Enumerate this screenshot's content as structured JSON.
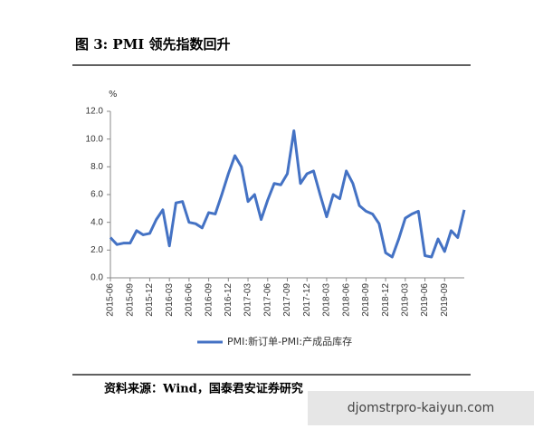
{
  "header": {
    "title": "图 3:  PMI 领先指数回升"
  },
  "chart_data": {
    "type": "line",
    "y_unit": "%",
    "categories": [
      "2015-06",
      null,
      null,
      "2015-09",
      null,
      null,
      "2015-12",
      null,
      null,
      "2016-03",
      null,
      null,
      "2016-06",
      null,
      null,
      "2016-09",
      null,
      null,
      "2016-12",
      null,
      null,
      "2017-03",
      null,
      null,
      "2017-06",
      null,
      null,
      "2017-09",
      null,
      null,
      "2017-12",
      null,
      null,
      "2018-03",
      null,
      null,
      "2018-06",
      null,
      null,
      "2018-09",
      null,
      null,
      "2018-12",
      null,
      null,
      "2019-03",
      null,
      null,
      "2019-06",
      null,
      null,
      "2019-09",
      null,
      null,
      null
    ],
    "series": [
      {
        "name": "PMI:新订单-PMI:产成品库存",
        "color": "#4472c4",
        "values": [
          2.9,
          2.4,
          2.5,
          2.5,
          3.4,
          3.1,
          3.2,
          4.2,
          4.9,
          2.3,
          5.4,
          5.5,
          4.0,
          3.9,
          3.6,
          4.7,
          4.6,
          6.0,
          7.5,
          8.8,
          8.0,
          5.5,
          6.0,
          4.2,
          5.6,
          6.8,
          6.7,
          7.5,
          10.6,
          6.8,
          7.5,
          7.7,
          6.0,
          4.4,
          6.0,
          5.7,
          7.7,
          6.8,
          5.2,
          4.8,
          4.6,
          3.9,
          1.8,
          1.5,
          2.8,
          4.3,
          4.6,
          4.8,
          1.6,
          1.5,
          2.8,
          1.9,
          3.4,
          2.9,
          4.9
        ]
      }
    ],
    "ylim": [
      0,
      12
    ],
    "yticks": [
      {
        "value": 0,
        "label": "0.0"
      },
      {
        "value": 2,
        "label": "2.0"
      },
      {
        "value": 4,
        "label": "4.0"
      },
      {
        "value": 6,
        "label": "6.0"
      },
      {
        "value": 8,
        "label": "8.0"
      },
      {
        "value": 10,
        "label": "10.0"
      },
      {
        "value": 12,
        "label": "12.0"
      }
    ],
    "legend": "bottom"
  },
  "footer": {
    "source": "资料来源：Wind，国泰君安证券研究"
  },
  "watermark": "djomstrpro-kaiyun.com"
}
